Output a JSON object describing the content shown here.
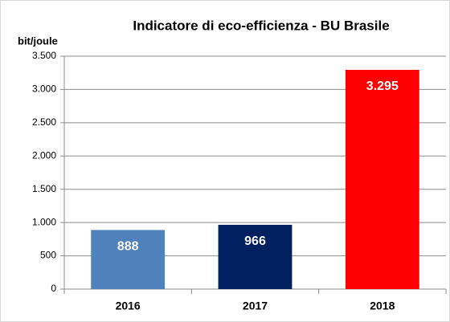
{
  "chart_data": {
    "type": "bar",
    "title": "Indicatore di eco-efficienza - BU Brasile",
    "y_label": "bit/joule",
    "categories": [
      "2016",
      "2017",
      "2018"
    ],
    "values": [
      888,
      966,
      3295
    ],
    "value_labels": [
      "888",
      "966",
      "3.295"
    ],
    "colors": [
      "#4f81bd",
      "#002060",
      "#ff0000"
    ],
    "ylim": [
      0,
      3500
    ],
    "yticks": [
      0,
      500,
      {
        "value": 1000,
        "label": "1.000"
      },
      {
        "value": 1500,
        "label": "1.500"
      },
      {
        "value": 2000,
        "label": "2.000"
      },
      {
        "value": 2500,
        "label": "2.500"
      },
      {
        "value": 3000,
        "label": "3.000"
      },
      {
        "value": 3500,
        "label": "3.500"
      }
    ],
    "grid": true
  }
}
